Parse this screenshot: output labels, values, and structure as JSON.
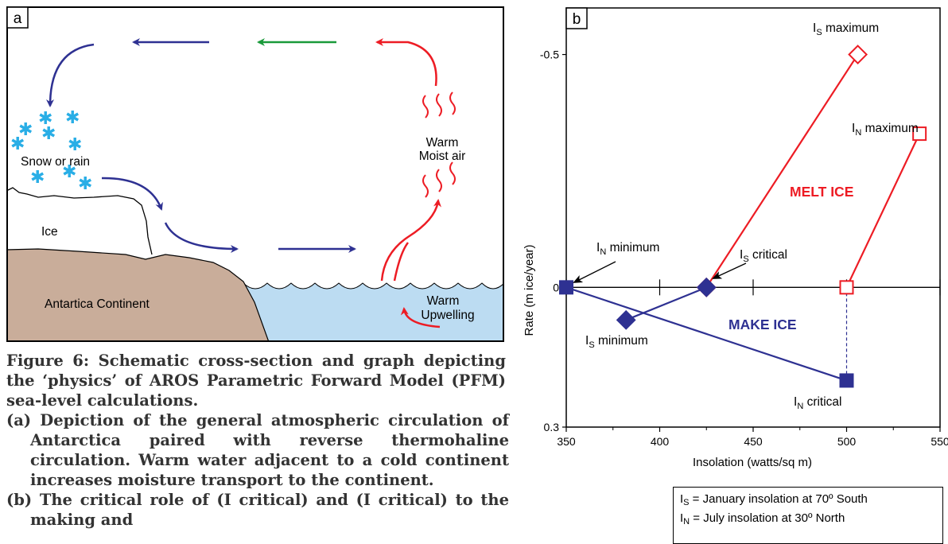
{
  "panel_a": {
    "label": "a",
    "text_snow": "Snow or rain",
    "text_ice": "Ice",
    "text_continent": "Antartica Continent",
    "text_warm_air_1": "Warm",
    "text_warm_air_2": "Moist air",
    "text_upwelling_1": "Warm",
    "text_upwelling_2": "Upwelling",
    "colors": {
      "land": "#c9ad9a",
      "ocean": "#bcdcf2",
      "blue_arrow": "#2e3192",
      "green_arrow": "#1a9a3a",
      "red_arrow": "#ed1c24",
      "snow": "#29aee6"
    }
  },
  "panel_b": {
    "label": "b",
    "ylabel": "Rate (m ice/year)",
    "xlabel": "Insolation (watts/sq m)",
    "annotations": {
      "is_max": {
        "sym": "I",
        "sub": "S",
        "text": " maximum"
      },
      "in_max": {
        "sym": "I",
        "sub": "N",
        "text": " maximum"
      },
      "in_min": {
        "sym": "I",
        "sub": "N",
        "text": " minimum"
      },
      "is_crit": {
        "sym": "I",
        "sub": "S",
        "text": " critical"
      },
      "is_min": {
        "sym": "I",
        "sub": "S",
        "text": " minimum"
      },
      "in_crit": {
        "sym": "I",
        "sub": "N",
        "text": " critical"
      }
    },
    "melt_label": "MELT ICE",
    "make_label": "MAKE ICE",
    "colors": {
      "melt": "#ed1c24",
      "make": "#2e3192"
    }
  },
  "chart_data": {
    "type": "line",
    "title": "",
    "xlabel": "Insolation (watts/sq m)",
    "ylabel": "Rate (m ice/year)",
    "xlim": [
      350,
      550
    ],
    "ylim": [
      0.3,
      -0.6
    ],
    "xticks": [
      "350",
      "400",
      "450",
      "500",
      "550"
    ],
    "yticks": [
      "-0.5",
      "0",
      "0.3"
    ],
    "series": [
      {
        "name": "",
        "color": "#ed1c24",
        "marker": "open-diamond",
        "x": [
          425,
          506
        ],
        "y": [
          0,
          -0.5
        ]
      },
      {
        "name": "",
        "color": "#ed1c24",
        "marker": "open-square",
        "x": [
          500,
          539
        ],
        "y": [
          0,
          -0.33
        ]
      },
      {
        "name": "",
        "color": "#2e3192",
        "marker": "filled-diamond",
        "x": [
          382,
          425
        ],
        "y": [
          0.07,
          0
        ]
      },
      {
        "name": "",
        "color": "#2e3192",
        "marker": "filled-square",
        "x": [
          350,
          500
        ],
        "y": [
          0,
          0.2
        ]
      }
    ]
  },
  "caption": {
    "title": "Figure 6:   Schematic cross-section and graph depicting the ‘physics’ of AROS Parametric Forward Model (PFM) sea-level calculations.",
    "item_a": "(a) Depiction of the general atmospheric circulation of Antarctica paired with reverse thermohaline circulation. Warm water adjacent to a cold continent increases moisture transport to the continent.",
    "item_b": "(b) The critical role of (I  critical) and (I  critical) to the making and"
  },
  "legend": {
    "line1": {
      "sym": "I",
      "sub": "S",
      "text": " = January insolation at 70º South"
    },
    "line2": {
      "sym": "I",
      "sub": "N",
      "text": " = July insolation at 30º North"
    }
  }
}
